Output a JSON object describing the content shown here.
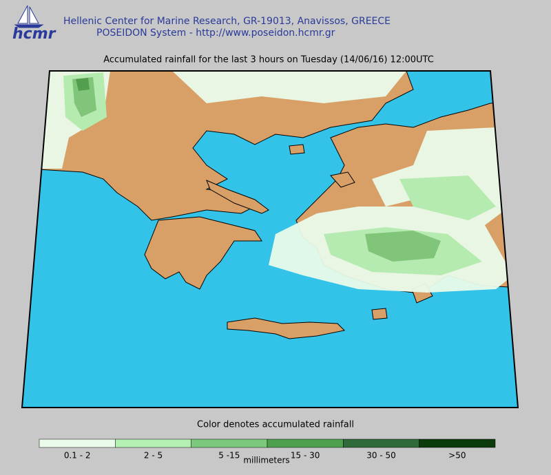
{
  "header": {
    "logo": "hcmr",
    "line1": "Hellenic Center for Marine Research, GR-19013, Anavissos, GREECE",
    "line2": "POSEIDON System - http://www.poseidon.hcmr.gr"
  },
  "map": {
    "title": "Accumulated rainfall for the last 3 hours on Tuesday (14/06/16) 12:00UTC"
  },
  "legend": {
    "title": "Color denotes accumulated rainfall",
    "unit": "millimeters",
    "bins": [
      {
        "label": "0.1 - 2",
        "color": "#eafbea"
      },
      {
        "label": "2 - 5",
        "color": "#b4f0b4"
      },
      {
        "label": "5 -15",
        "color": "#7cc87c"
      },
      {
        "label": "15 - 30",
        "color": "#4ca04c"
      },
      {
        "label": "30 - 50",
        "color": "#2f6b3a"
      },
      {
        "label": ">50",
        "color": "#0b3a0b"
      }
    ]
  }
}
